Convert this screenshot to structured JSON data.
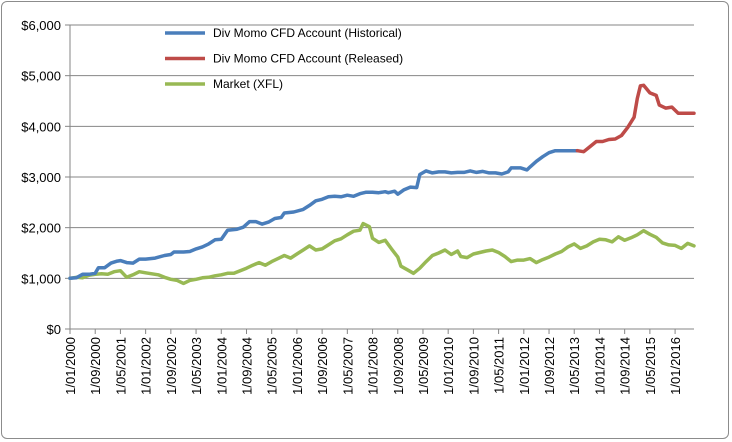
{
  "chart_data": {
    "type": "line",
    "title": "",
    "xlabel": "",
    "ylabel": "",
    "ylim": [
      0,
      6000
    ],
    "y_ticks": [
      0,
      1000,
      2000,
      3000,
      4000,
      5000,
      6000
    ],
    "y_tick_labels": [
      "$0",
      "$1,000",
      "$2,000",
      "$3,000",
      "$4,000",
      "$5,000",
      "$6,000"
    ],
    "x_range": [
      "2000-01-01",
      "2016-07-01"
    ],
    "x_tick_labels": [
      "1/01/2000",
      "1/09/2000",
      "1/05/2001",
      "1/01/2002",
      "1/09/2002",
      "1/05/2003",
      "1/01/2004",
      "1/09/2004",
      "1/05/2005",
      "1/01/2006",
      "1/09/2006",
      "1/05/2007",
      "1/01/2008",
      "1/09/2008",
      "1/05/2009",
      "1/01/2010",
      "1/09/2010",
      "1/05/2011",
      "1/01/2012",
      "1/09/2012",
      "1/05/2013",
      "1/01/2014",
      "1/09/2014",
      "1/05/2015",
      "1/01/2016"
    ],
    "grid": "horizontal",
    "legend_position": "top-left",
    "series": [
      {
        "name": "Div Momo CFD Account (Historical)",
        "color": "#4a7ebb",
        "points": [
          [
            "2000-01",
            1000
          ],
          [
            "2000-03",
            1010
          ],
          [
            "2000-05",
            1080
          ],
          [
            "2000-07",
            1080
          ],
          [
            "2000-09",
            1100
          ],
          [
            "2000-10",
            1210
          ],
          [
            "2000-12",
            1210
          ],
          [
            "2001-02",
            1300
          ],
          [
            "2001-04",
            1340
          ],
          [
            "2001-05",
            1350
          ],
          [
            "2001-07",
            1310
          ],
          [
            "2001-09",
            1300
          ],
          [
            "2001-11",
            1380
          ],
          [
            "2002-01",
            1380
          ],
          [
            "2002-04",
            1400
          ],
          [
            "2002-07",
            1450
          ],
          [
            "2002-09",
            1470
          ],
          [
            "2002-10",
            1520
          ],
          [
            "2003-01",
            1520
          ],
          [
            "2003-03",
            1530
          ],
          [
            "2003-05",
            1580
          ],
          [
            "2003-07",
            1620
          ],
          [
            "2003-09",
            1680
          ],
          [
            "2003-11",
            1760
          ],
          [
            "2004-01",
            1770
          ],
          [
            "2004-03",
            1950
          ],
          [
            "2004-06",
            1970
          ],
          [
            "2004-08",
            2010
          ],
          [
            "2004-10",
            2120
          ],
          [
            "2004-12",
            2120
          ],
          [
            "2005-02",
            2070
          ],
          [
            "2005-04",
            2110
          ],
          [
            "2005-06",
            2180
          ],
          [
            "2005-08",
            2200
          ],
          [
            "2005-09",
            2290
          ],
          [
            "2005-12",
            2310
          ],
          [
            "2006-03",
            2360
          ],
          [
            "2006-05",
            2440
          ],
          [
            "2006-07",
            2530
          ],
          [
            "2006-09",
            2560
          ],
          [
            "2006-11",
            2610
          ],
          [
            "2007-01",
            2620
          ],
          [
            "2007-03",
            2610
          ],
          [
            "2007-05",
            2640
          ],
          [
            "2007-07",
            2620
          ],
          [
            "2007-09",
            2670
          ],
          [
            "2007-11",
            2700
          ],
          [
            "2008-01",
            2700
          ],
          [
            "2008-03",
            2690
          ],
          [
            "2008-05",
            2710
          ],
          [
            "2008-06",
            2690
          ],
          [
            "2008-08",
            2720
          ],
          [
            "2008-09",
            2660
          ],
          [
            "2008-11",
            2750
          ],
          [
            "2009-01",
            2800
          ],
          [
            "2009-03",
            2790
          ],
          [
            "2009-04",
            3050
          ],
          [
            "2009-06",
            3120
          ],
          [
            "2009-08",
            3080
          ],
          [
            "2009-10",
            3100
          ],
          [
            "2009-12",
            3100
          ],
          [
            "2010-02",
            3080
          ],
          [
            "2010-04",
            3090
          ],
          [
            "2010-06",
            3090
          ],
          [
            "2010-08",
            3120
          ],
          [
            "2010-10",
            3090
          ],
          [
            "2010-12",
            3110
          ],
          [
            "2011-02",
            3080
          ],
          [
            "2011-04",
            3080
          ],
          [
            "2011-06",
            3060
          ],
          [
            "2011-08",
            3100
          ],
          [
            "2011-09",
            3180
          ],
          [
            "2011-12",
            3180
          ],
          [
            "2012-02",
            3140
          ],
          [
            "2012-03",
            3200
          ],
          [
            "2012-05",
            3310
          ],
          [
            "2012-07",
            3400
          ],
          [
            "2012-09",
            3480
          ],
          [
            "2012-11",
            3520
          ],
          [
            "2013-03",
            3520
          ],
          [
            "2013-06",
            3520
          ]
        ]
      },
      {
        "name": "Div Momo CFD Account (Released)",
        "color": "#be4b48",
        "points": [
          [
            "2013-06",
            3520
          ],
          [
            "2013-08",
            3500
          ],
          [
            "2013-10",
            3600
          ],
          [
            "2013-12",
            3700
          ],
          [
            "2014-02",
            3700
          ],
          [
            "2014-04",
            3740
          ],
          [
            "2014-06",
            3750
          ],
          [
            "2014-08",
            3820
          ],
          [
            "2014-10",
            3980
          ],
          [
            "2014-12",
            4180
          ],
          [
            "2015-01",
            4550
          ],
          [
            "2015-02",
            4800
          ],
          [
            "2015-03",
            4810
          ],
          [
            "2015-05",
            4660
          ],
          [
            "2015-07",
            4610
          ],
          [
            "2015-08",
            4420
          ],
          [
            "2015-10",
            4360
          ],
          [
            "2015-12",
            4380
          ],
          [
            "2016-02",
            4260
          ],
          [
            "2016-07",
            4260
          ]
        ]
      },
      {
        "name": "Market (XFL)",
        "color": "#98b954",
        "points": [
          [
            "2000-01",
            1000
          ],
          [
            "2000-03",
            1020
          ],
          [
            "2000-05",
            1010
          ],
          [
            "2000-07",
            1060
          ],
          [
            "2000-09",
            1080
          ],
          [
            "2000-11",
            1090
          ],
          [
            "2001-01",
            1080
          ],
          [
            "2001-03",
            1130
          ],
          [
            "2001-05",
            1150
          ],
          [
            "2001-07",
            1020
          ],
          [
            "2001-09",
            1070
          ],
          [
            "2001-11",
            1130
          ],
          [
            "2002-01",
            1110
          ],
          [
            "2002-03",
            1090
          ],
          [
            "2002-05",
            1070
          ],
          [
            "2002-07",
            1020
          ],
          [
            "2002-09",
            980
          ],
          [
            "2002-11",
            960
          ],
          [
            "2003-01",
            900
          ],
          [
            "2003-03",
            960
          ],
          [
            "2003-05",
            980
          ],
          [
            "2003-07",
            1010
          ],
          [
            "2003-09",
            1020
          ],
          [
            "2003-11",
            1050
          ],
          [
            "2004-01",
            1070
          ],
          [
            "2004-03",
            1100
          ],
          [
            "2004-05",
            1100
          ],
          [
            "2004-07",
            1150
          ],
          [
            "2004-09",
            1200
          ],
          [
            "2004-11",
            1260
          ],
          [
            "2005-01",
            1310
          ],
          [
            "2005-03",
            1260
          ],
          [
            "2005-05",
            1330
          ],
          [
            "2005-07",
            1390
          ],
          [
            "2005-09",
            1450
          ],
          [
            "2005-11",
            1400
          ],
          [
            "2006-01",
            1480
          ],
          [
            "2006-03",
            1560
          ],
          [
            "2006-05",
            1640
          ],
          [
            "2006-07",
            1560
          ],
          [
            "2006-09",
            1580
          ],
          [
            "2006-11",
            1660
          ],
          [
            "2007-01",
            1740
          ],
          [
            "2007-03",
            1780
          ],
          [
            "2007-05",
            1860
          ],
          [
            "2007-07",
            1930
          ],
          [
            "2007-09",
            1950
          ],
          [
            "2007-10",
            2080
          ],
          [
            "2007-12",
            2020
          ],
          [
            "2008-01",
            1790
          ],
          [
            "2008-03",
            1710
          ],
          [
            "2008-05",
            1750
          ],
          [
            "2008-07",
            1580
          ],
          [
            "2008-09",
            1420
          ],
          [
            "2008-10",
            1240
          ],
          [
            "2008-12",
            1170
          ],
          [
            "2009-02",
            1100
          ],
          [
            "2009-04",
            1200
          ],
          [
            "2009-06",
            1330
          ],
          [
            "2009-08",
            1450
          ],
          [
            "2009-10",
            1500
          ],
          [
            "2009-12",
            1560
          ],
          [
            "2010-02",
            1470
          ],
          [
            "2010-04",
            1540
          ],
          [
            "2010-05",
            1430
          ],
          [
            "2010-07",
            1410
          ],
          [
            "2010-09",
            1480
          ],
          [
            "2010-11",
            1510
          ],
          [
            "2011-01",
            1540
          ],
          [
            "2011-03",
            1560
          ],
          [
            "2011-05",
            1510
          ],
          [
            "2011-07",
            1430
          ],
          [
            "2011-09",
            1330
          ],
          [
            "2011-11",
            1360
          ],
          [
            "2012-01",
            1360
          ],
          [
            "2012-03",
            1390
          ],
          [
            "2012-05",
            1310
          ],
          [
            "2012-07",
            1370
          ],
          [
            "2012-09",
            1420
          ],
          [
            "2012-11",
            1480
          ],
          [
            "2013-01",
            1530
          ],
          [
            "2013-03",
            1620
          ],
          [
            "2013-05",
            1680
          ],
          [
            "2013-07",
            1590
          ],
          [
            "2013-09",
            1640
          ],
          [
            "2013-11",
            1720
          ],
          [
            "2014-01",
            1770
          ],
          [
            "2014-03",
            1760
          ],
          [
            "2014-05",
            1720
          ],
          [
            "2014-07",
            1820
          ],
          [
            "2014-09",
            1750
          ],
          [
            "2014-11",
            1800
          ],
          [
            "2015-01",
            1860
          ],
          [
            "2015-03",
            1940
          ],
          [
            "2015-05",
            1870
          ],
          [
            "2015-07",
            1810
          ],
          [
            "2015-09",
            1700
          ],
          [
            "2015-11",
            1660
          ],
          [
            "2016-01",
            1650
          ],
          [
            "2016-03",
            1590
          ],
          [
            "2016-05",
            1690
          ],
          [
            "2016-07",
            1640
          ]
        ]
      }
    ]
  }
}
